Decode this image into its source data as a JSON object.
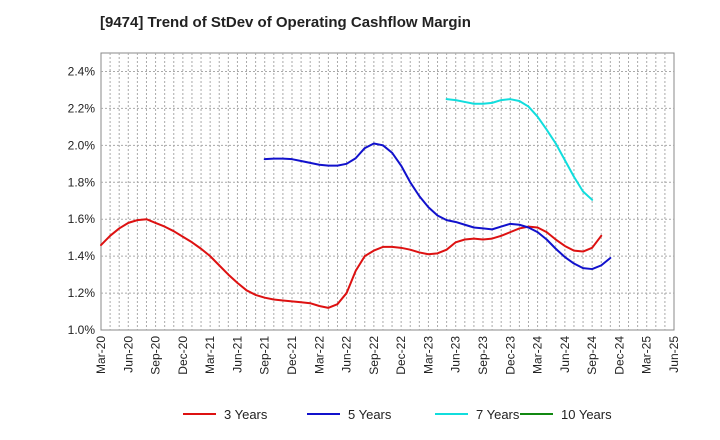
{
  "chart_data": {
    "type": "line",
    "title": "[9474]  Trend of StDev of Operating Cashflow Margin",
    "xlabel": "",
    "ylabel": "",
    "ylim": [
      1.0,
      2.5
    ],
    "y_ticks": [
      "1.0%",
      "1.2%",
      "1.4%",
      "1.6%",
      "1.8%",
      "2.0%",
      "2.2%",
      "2.4%"
    ],
    "y_tick_values": [
      1.0,
      1.2,
      1.4,
      1.6,
      1.8,
      2.0,
      2.2,
      2.4
    ],
    "x_ticks": [
      "Mar-20",
      "Jun-20",
      "Sep-20",
      "Dec-20",
      "Mar-21",
      "Jun-21",
      "Sep-21",
      "Dec-21",
      "Mar-22",
      "Jun-22",
      "Sep-22",
      "Dec-22",
      "Mar-23",
      "Jun-23",
      "Sep-23",
      "Dec-23",
      "Mar-24",
      "Jun-24",
      "Sep-24",
      "Dec-24",
      "Mar-25",
      "Jun-25"
    ],
    "grid": true,
    "legend_position": "bottom",
    "series": [
      {
        "name": "3 Years",
        "color": "#dd1111",
        "start_index": 0,
        "values": [
          1.46,
          1.51,
          1.55,
          1.58,
          1.595,
          1.6,
          1.58,
          1.56,
          1.535,
          1.505,
          1.475,
          1.44,
          1.4,
          1.35,
          1.3,
          1.255,
          1.215,
          1.19,
          1.175,
          1.165,
          1.16,
          1.155,
          1.15,
          1.145,
          1.13,
          1.12,
          1.14,
          1.2,
          1.32,
          1.4,
          1.43,
          1.45,
          1.45,
          1.445,
          1.435,
          1.42,
          1.41,
          1.415,
          1.435,
          1.475,
          1.49,
          1.495,
          1.49,
          1.495,
          1.51,
          1.53,
          1.55,
          1.56,
          1.555,
          1.53,
          1.49,
          1.455,
          1.43,
          1.425,
          1.445,
          1.51
        ]
      },
      {
        "name": "5 Years",
        "color": "#1111cc",
        "start_index": 18,
        "values": [
          1.925,
          1.928,
          1.928,
          1.925,
          1.915,
          1.905,
          1.895,
          1.89,
          1.89,
          1.9,
          1.93,
          1.985,
          2.01,
          2.0,
          1.96,
          1.89,
          1.8,
          1.725,
          1.665,
          1.62,
          1.595,
          1.585,
          1.57,
          1.555,
          1.55,
          1.545,
          1.56,
          1.575,
          1.57,
          1.555,
          1.53,
          1.49,
          1.44,
          1.395,
          1.36,
          1.335,
          1.33,
          1.35,
          1.39
        ]
      },
      {
        "name": "7 Years",
        "color": "#11dddd",
        "start_index": 38,
        "values": [
          2.25,
          2.245,
          2.235,
          2.225,
          2.225,
          2.23,
          2.245,
          2.25,
          2.24,
          2.21,
          2.155,
          2.085,
          2.01,
          1.92,
          1.83,
          1.75,
          1.705
        ]
      },
      {
        "name": "10 Years",
        "color": "#118811",
        "start_index": 0,
        "values": []
      }
    ]
  }
}
